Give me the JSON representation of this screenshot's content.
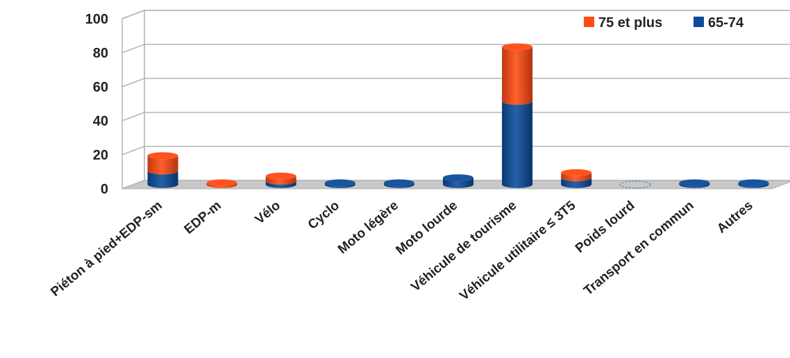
{
  "chart_data": {
    "type": "bar",
    "stacked": true,
    "three_d": true,
    "categories": [
      "Piéton à pied+EDP-sm",
      "EDP-m",
      "Vélo",
      "Cyclo",
      "Moto légère",
      "Moto lourde",
      "Véhicule de tourisme",
      "Véhicule utilitaire ≤ 3T5",
      "Poids lourd",
      "Transport en commun",
      "Autres"
    ],
    "series": [
      {
        "name": "65-74",
        "color": "#0A4C9A",
        "values": [
          8,
          0,
          2,
          1,
          1,
          4,
          49,
          4,
          0,
          1,
          1
        ]
      },
      {
        "name": "75 et plus",
        "color": "#FF4A12",
        "values": [
          9,
          1,
          3,
          0,
          0,
          0,
          32,
          3,
          0,
          0,
          0
        ]
      }
    ],
    "y_ticks": [
      "0",
      "20",
      "40",
      "60",
      "80",
      "100"
    ],
    "ylim": [
      0,
      100
    ],
    "grid": true,
    "legend_position": "top-right",
    "title": "",
    "xlabel": "",
    "ylabel": ""
  }
}
